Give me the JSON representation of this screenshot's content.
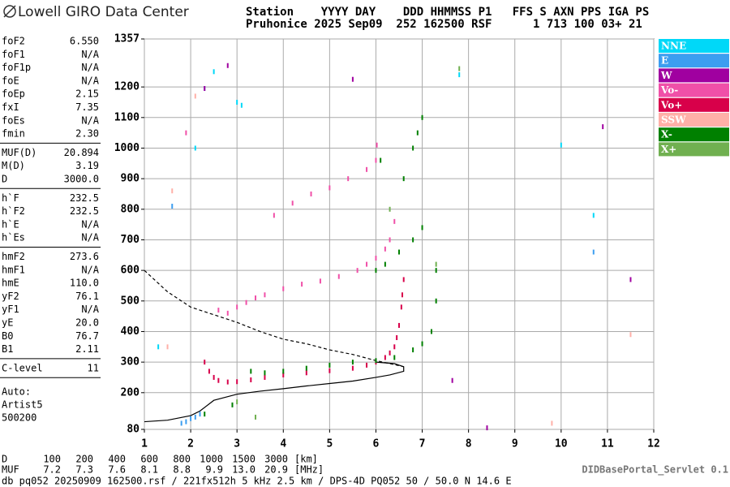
{
  "header": {
    "logo": "Lowell GIRO Data Center",
    "line1": "Station    YYYY DAY    DDD HHMMSS P1   FFS S AXN PPS IGA PS",
    "line2": "Pruhonice 2025 Sep09  252 162500 RSF      1 713 100 03+ 21"
  },
  "parameters": [
    [
      {
        "name": "foF2",
        "value": "6.550"
      },
      {
        "name": "foF1",
        "value": "N/A"
      },
      {
        "name": "foF1p",
        "value": "N/A"
      },
      {
        "name": "foE",
        "value": "N/A"
      },
      {
        "name": "foEp",
        "value": "2.15"
      },
      {
        "name": "fxI",
        "value": "7.35"
      },
      {
        "name": "foEs",
        "value": "N/A"
      },
      {
        "name": "fmin",
        "value": "2.30"
      }
    ],
    [
      {
        "name": "MUF(D)",
        "value": "20.894"
      },
      {
        "name": "M(D)",
        "value": "3.19"
      },
      {
        "name": "D",
        "value": "3000.0"
      }
    ],
    [
      {
        "name": "h`F",
        "value": "232.5"
      },
      {
        "name": "h`F2",
        "value": "232.5"
      },
      {
        "name": "h`E",
        "value": "N/A"
      },
      {
        "name": "h`Es",
        "value": "N/A"
      }
    ],
    [
      {
        "name": "hmF2",
        "value": "273.6"
      },
      {
        "name": "hmF1",
        "value": "N/A"
      },
      {
        "name": "hmE",
        "value": "110.0"
      },
      {
        "name": "yF2",
        "value": "76.1"
      },
      {
        "name": "yF1",
        "value": "N/A"
      },
      {
        "name": "yE",
        "value": "20.0"
      },
      {
        "name": "B0",
        "value": "76.7"
      },
      {
        "name": "B1",
        "value": "2.11"
      }
    ],
    [
      {
        "name": "C-level",
        "value": "11"
      }
    ]
  ],
  "autoscaling": [
    "Auto:",
    "Artist5",
    "500200"
  ],
  "footer": {
    "d_label": "D",
    "d_values": [
      "100",
      "200",
      "400",
      "600",
      "800",
      "1000",
      "1500",
      "3000"
    ],
    "d_unit": "[km]",
    "muf_label": "MUF",
    "muf_values": [
      "7.2",
      "7.3",
      "7.6",
      "8.1",
      "8.8",
      "9.9",
      "13.0",
      "20.9"
    ],
    "muf_unit": "[MHz]",
    "servlet": "DIDBasePortal_Servlet 0.1",
    "file_line": "db pq052 20250909 162500.rsf / 221fx512h 5 kHz 2.5 km / DPS-4D PQ052 50 / 50.0 N 14.6 E"
  },
  "chart_data": {
    "type": "scatter",
    "xlim": [
      1,
      12
    ],
    "xticks": [
      1,
      2,
      3,
      4,
      5,
      6,
      7,
      8,
      9,
      10,
      11,
      12
    ],
    "ylim": [
      80,
      1357
    ],
    "yticks": [
      80,
      200,
      300,
      400,
      500,
      600,
      700,
      800,
      900,
      1000,
      1100,
      1200,
      1357
    ],
    "grid": true,
    "series": [
      {
        "name": "NNE",
        "color": "#00d8f8",
        "x": [
          2.5,
          3.0,
          7.8,
          10.0,
          10.7,
          2.1,
          3.1,
          1.3
        ],
        "values": [
          1250,
          1150,
          1240,
          1010,
          780,
          1000,
          1140,
          350
        ]
      },
      {
        "name": "E",
        "color": "#3c9ef0",
        "x": [
          1.8,
          1.9,
          2.0,
          2.1,
          2.2,
          1.6,
          10.7,
          2.3
        ],
        "values": [
          100,
          105,
          115,
          120,
          130,
          810,
          660,
          1195
        ]
      },
      {
        "name": "W",
        "color": "#a000a0",
        "x": [
          5.5,
          2.8,
          8.4,
          10.9,
          11.5,
          2.3,
          7.65
        ],
        "values": [
          1225,
          1270,
          85,
          1070,
          570,
          1195,
          240
        ]
      },
      {
        "name": "Vo-",
        "color": "#f050a8",
        "x": [
          2.6,
          2.8,
          3.0,
          3.2,
          3.4,
          3.6,
          4.0,
          4.4,
          4.8,
          5.2,
          5.6,
          5.8,
          6.0,
          6.2,
          6.3,
          6.4,
          3.8,
          4.2,
          4.6,
          5.0,
          5.4,
          5.8,
          6.0,
          6.02,
          1.9
        ],
        "values": [
          470,
          460,
          480,
          495,
          510,
          520,
          540,
          555,
          565,
          580,
          600,
          620,
          640,
          670,
          700,
          760,
          780,
          820,
          850,
          870,
          900,
          930,
          960,
          1010,
          1050
        ]
      },
      {
        "name": "Vo+",
        "color": "#d8004a",
        "x": [
          2.3,
          2.4,
          2.5,
          2.6,
          2.8,
          3.0,
          3.3,
          3.6,
          4.0,
          4.5,
          5.0,
          5.5,
          5.8,
          6.0,
          6.2,
          6.3,
          6.4,
          6.45,
          6.5,
          6.55,
          6.57,
          6.6
        ],
        "values": [
          300,
          270,
          250,
          240,
          235,
          236,
          242,
          250,
          258,
          265,
          272,
          280,
          290,
          300,
          315,
          330,
          350,
          380,
          420,
          480,
          520,
          570
        ]
      },
      {
        "name": "SSW",
        "color": "#ffb0a8",
        "x": [
          1.6,
          2.1,
          9.8,
          1.5,
          11.5
        ],
        "values": [
          860,
          1170,
          100,
          350,
          390
        ]
      },
      {
        "name": "X-",
        "color": "#008000",
        "x": [
          3.3,
          3.6,
          4.0,
          4.5,
          5.0,
          5.5,
          6.0,
          6.4,
          6.8,
          7.0,
          7.2,
          7.3,
          7.3,
          6.0,
          6.2,
          6.5,
          6.8,
          7.0,
          6.6,
          6.8,
          6.9,
          7.0,
          2.9,
          2.3,
          6.1
        ],
        "values": [
          270,
          265,
          270,
          280,
          290,
          300,
          305,
          315,
          340,
          360,
          400,
          500,
          600,
          600,
          620,
          660,
          700,
          740,
          900,
          1000,
          1050,
          1100,
          160,
          130,
          960
        ]
      },
      {
        "name": "X+",
        "color": "#70b050",
        "x": [
          7.8,
          3.0,
          7.3,
          6.3,
          3.4
        ],
        "values": [
          1260,
          170,
          620,
          800,
          120
        ]
      }
    ],
    "lines": [
      {
        "color": "#000000",
        "dash": "4 3",
        "x": [
          1.0,
          1.5,
          2.0,
          2.5,
          3.0,
          3.5,
          4.0,
          4.5,
          5.0,
          5.5,
          6.0,
          6.3,
          6.6
        ],
        "values": [
          600,
          530,
          480,
          455,
          430,
          400,
          375,
          360,
          340,
          325,
          305,
          295,
          285
        ]
      },
      {
        "color": "#000000",
        "dash": "none",
        "x": [
          1.0,
          1.5,
          2.0,
          2.2,
          2.5,
          3.0,
          3.5,
          4.0,
          4.5,
          5.0,
          5.5,
          6.0,
          6.3,
          6.6,
          6.6,
          6.4,
          6.0
        ],
        "values": [
          105,
          110,
          125,
          140,
          175,
          195,
          205,
          213,
          222,
          230,
          238,
          250,
          258,
          270,
          285,
          295,
          300
        ]
      }
    ]
  }
}
